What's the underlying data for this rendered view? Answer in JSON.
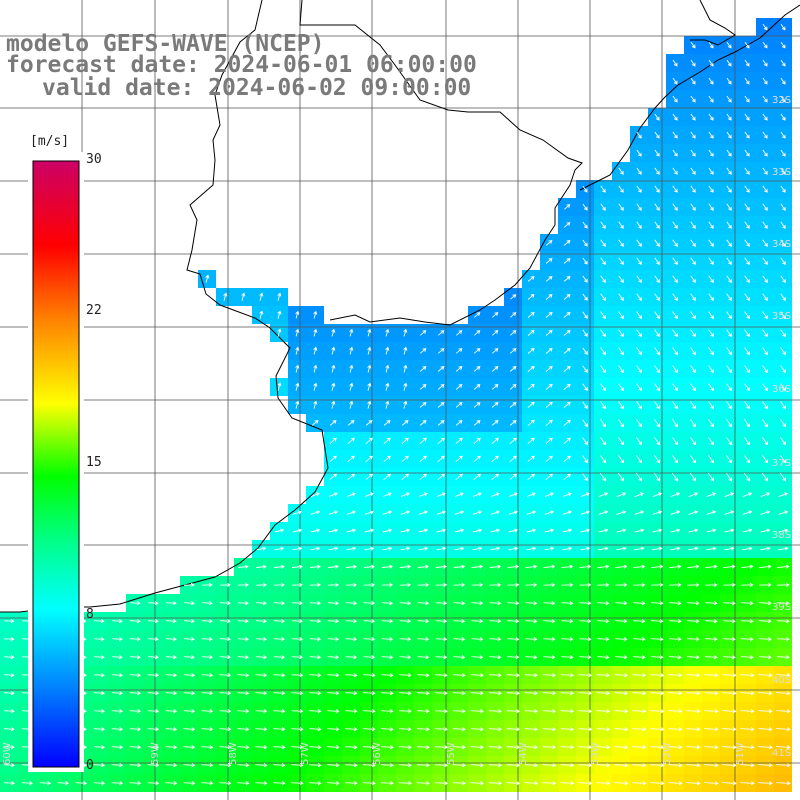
{
  "title": {
    "line1": "modelo GEFS-WAVE (NCEP)",
    "line2": "forecast date: 2024-06-01 06:00:00",
    "line3": "valid date: 2024-06-02 09:00:00"
  },
  "colorbar": {
    "unit": "[m/s]",
    "ticks": [
      "30",
      "22",
      "15",
      "8",
      "0"
    ],
    "tick_values": [
      30,
      22,
      15,
      8,
      0
    ],
    "colors": [
      "#0000ff",
      "#0080ff",
      "#00ffff",
      "#00ff40",
      "#80ff00",
      "#ffff00",
      "#ff8000",
      "#ff0000",
      "#cc0066"
    ]
  },
  "lat_labels": [
    "32S",
    "33S",
    "34S",
    "35S",
    "36S",
    "37S",
    "38S",
    "39S",
    "40S",
    "41S"
  ],
  "lon_labels": [
    "60W",
    "59W",
    "58W",
    "57W",
    "56W",
    "55W",
    "54W",
    "53W",
    "52W",
    "51W"
  ],
  "colors": {
    "land": "#ffffff",
    "coastline": "#000000",
    "grid": "#555555",
    "arrows": "#ffffff",
    "labels": "#dddddd"
  }
}
